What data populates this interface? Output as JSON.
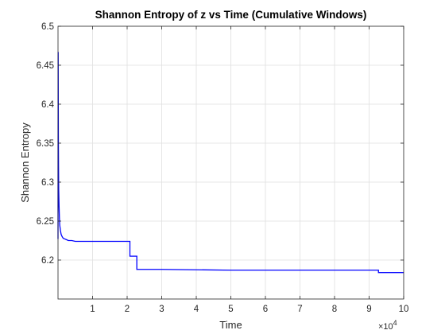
{
  "chart_data": {
    "type": "line",
    "title": "Shannon Entropy of z vs Time (Cumulative Windows)",
    "xlabel": "Time",
    "ylabel": "Shannon Entropy",
    "xlim": [
      0,
      100000
    ],
    "ylim": [
      6.15,
      6.5
    ],
    "x_ticks": [
      10000,
      20000,
      30000,
      40000,
      50000,
      60000,
      70000,
      80000,
      90000,
      100000
    ],
    "x_tick_labels": [
      "1",
      "2",
      "3",
      "4",
      "5",
      "6",
      "7",
      "8",
      "9",
      "10"
    ],
    "x_exponent_label": "×10",
    "x_exponent_power": "4",
    "y_ticks": [
      6.2,
      6.25,
      6.3,
      6.35,
      6.4,
      6.45,
      6.5
    ],
    "y_tick_labels": [
      "6.2",
      "6.25",
      "6.3",
      "6.35",
      "6.4",
      "6.45",
      "6.5"
    ],
    "grid": true,
    "line_color": "#0000ff",
    "series": [
      {
        "x": [
          0,
          50,
          100,
          150,
          200,
          300,
          400,
          500,
          700,
          900,
          1200,
          1500,
          2000,
          2500,
          3000,
          4000,
          5000,
          7000,
          10000,
          15000,
          20800,
          20801,
          22800,
          22801,
          30000,
          50000,
          70000,
          92700,
          92701,
          100000
        ],
        "y": [
          6.227,
          6.467,
          6.36,
          6.32,
          6.29,
          6.27,
          6.255,
          6.245,
          6.238,
          6.233,
          6.23,
          6.228,
          6.227,
          6.226,
          6.225,
          6.225,
          6.224,
          6.224,
          6.224,
          6.224,
          6.224,
          6.205,
          6.205,
          6.188,
          6.188,
          6.187,
          6.187,
          6.187,
          6.184,
          6.184
        ]
      }
    ]
  }
}
